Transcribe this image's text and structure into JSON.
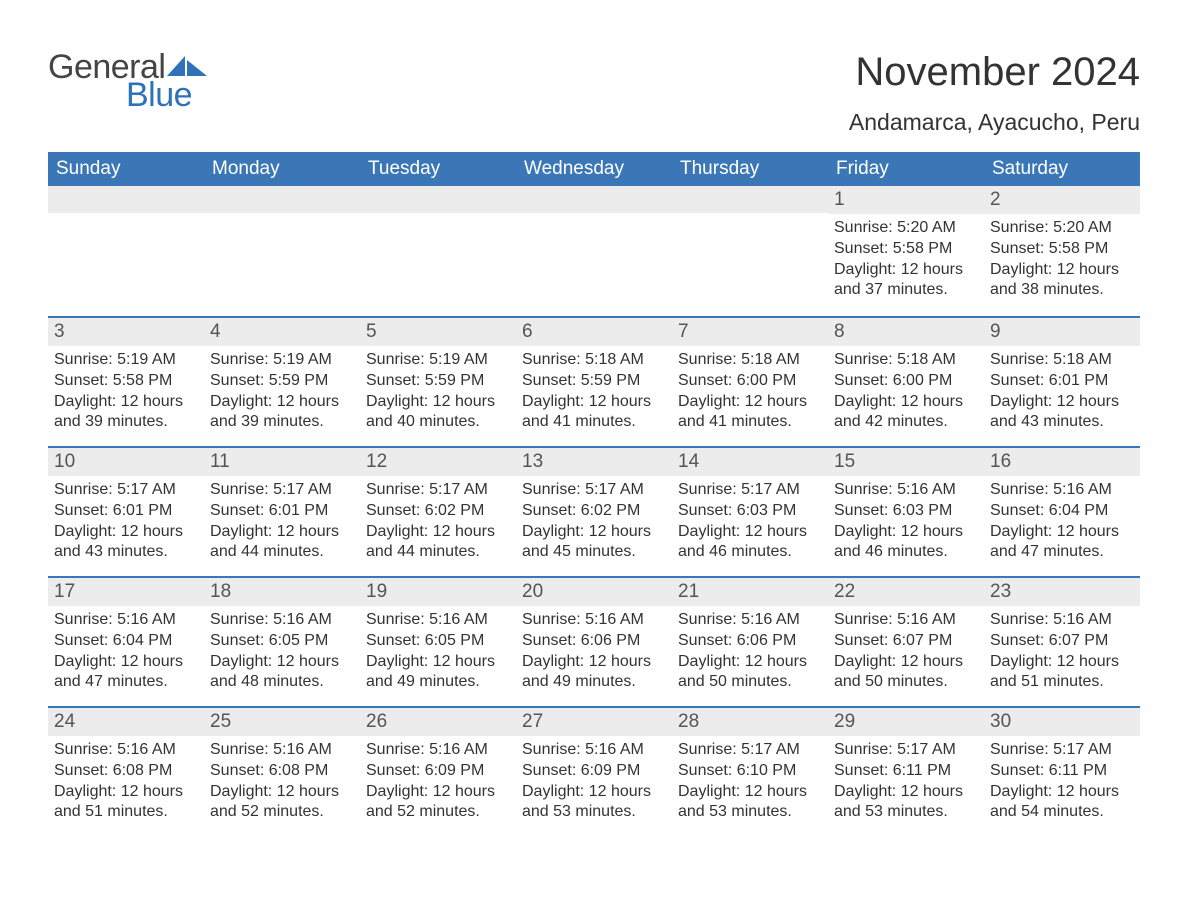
{
  "logo": {
    "text1": "General",
    "text2": "Blue",
    "icon_color": "#2f72b9"
  },
  "title": "November 2024",
  "location": "Andamarca, Ayacucho, Peru",
  "colors": {
    "header_bg": "#3b77b7",
    "header_text": "#ffffff",
    "date_bar_bg": "#ececec",
    "border": "#3b77b7",
    "body_text": "#333333"
  },
  "day_headers": [
    "Sunday",
    "Monday",
    "Tuesday",
    "Wednesday",
    "Thursday",
    "Friday",
    "Saturday"
  ],
  "weeks": [
    [
      {
        "date": "",
        "sunrise": "",
        "sunset": "",
        "daylight": ""
      },
      {
        "date": "",
        "sunrise": "",
        "sunset": "",
        "daylight": ""
      },
      {
        "date": "",
        "sunrise": "",
        "sunset": "",
        "daylight": ""
      },
      {
        "date": "",
        "sunrise": "",
        "sunset": "",
        "daylight": ""
      },
      {
        "date": "",
        "sunrise": "",
        "sunset": "",
        "daylight": ""
      },
      {
        "date": "1",
        "sunrise": "Sunrise: 5:20 AM",
        "sunset": "Sunset: 5:58 PM",
        "daylight": "Daylight: 12 hours and 37 minutes."
      },
      {
        "date": "2",
        "sunrise": "Sunrise: 5:20 AM",
        "sunset": "Sunset: 5:58 PM",
        "daylight": "Daylight: 12 hours and 38 minutes."
      }
    ],
    [
      {
        "date": "3",
        "sunrise": "Sunrise: 5:19 AM",
        "sunset": "Sunset: 5:58 PM",
        "daylight": "Daylight: 12 hours and 39 minutes."
      },
      {
        "date": "4",
        "sunrise": "Sunrise: 5:19 AM",
        "sunset": "Sunset: 5:59 PM",
        "daylight": "Daylight: 12 hours and 39 minutes."
      },
      {
        "date": "5",
        "sunrise": "Sunrise: 5:19 AM",
        "sunset": "Sunset: 5:59 PM",
        "daylight": "Daylight: 12 hours and 40 minutes."
      },
      {
        "date": "6",
        "sunrise": "Sunrise: 5:18 AM",
        "sunset": "Sunset: 5:59 PM",
        "daylight": "Daylight: 12 hours and 41 minutes."
      },
      {
        "date": "7",
        "sunrise": "Sunrise: 5:18 AM",
        "sunset": "Sunset: 6:00 PM",
        "daylight": "Daylight: 12 hours and 41 minutes."
      },
      {
        "date": "8",
        "sunrise": "Sunrise: 5:18 AM",
        "sunset": "Sunset: 6:00 PM",
        "daylight": "Daylight: 12 hours and 42 minutes."
      },
      {
        "date": "9",
        "sunrise": "Sunrise: 5:18 AM",
        "sunset": "Sunset: 6:01 PM",
        "daylight": "Daylight: 12 hours and 43 minutes."
      }
    ],
    [
      {
        "date": "10",
        "sunrise": "Sunrise: 5:17 AM",
        "sunset": "Sunset: 6:01 PM",
        "daylight": "Daylight: 12 hours and 43 minutes."
      },
      {
        "date": "11",
        "sunrise": "Sunrise: 5:17 AM",
        "sunset": "Sunset: 6:01 PM",
        "daylight": "Daylight: 12 hours and 44 minutes."
      },
      {
        "date": "12",
        "sunrise": "Sunrise: 5:17 AM",
        "sunset": "Sunset: 6:02 PM",
        "daylight": "Daylight: 12 hours and 44 minutes."
      },
      {
        "date": "13",
        "sunrise": "Sunrise: 5:17 AM",
        "sunset": "Sunset: 6:02 PM",
        "daylight": "Daylight: 12 hours and 45 minutes."
      },
      {
        "date": "14",
        "sunrise": "Sunrise: 5:17 AM",
        "sunset": "Sunset: 6:03 PM",
        "daylight": "Daylight: 12 hours and 46 minutes."
      },
      {
        "date": "15",
        "sunrise": "Sunrise: 5:16 AM",
        "sunset": "Sunset: 6:03 PM",
        "daylight": "Daylight: 12 hours and 46 minutes."
      },
      {
        "date": "16",
        "sunrise": "Sunrise: 5:16 AM",
        "sunset": "Sunset: 6:04 PM",
        "daylight": "Daylight: 12 hours and 47 minutes."
      }
    ],
    [
      {
        "date": "17",
        "sunrise": "Sunrise: 5:16 AM",
        "sunset": "Sunset: 6:04 PM",
        "daylight": "Daylight: 12 hours and 47 minutes."
      },
      {
        "date": "18",
        "sunrise": "Sunrise: 5:16 AM",
        "sunset": "Sunset: 6:05 PM",
        "daylight": "Daylight: 12 hours and 48 minutes."
      },
      {
        "date": "19",
        "sunrise": "Sunrise: 5:16 AM",
        "sunset": "Sunset: 6:05 PM",
        "daylight": "Daylight: 12 hours and 49 minutes."
      },
      {
        "date": "20",
        "sunrise": "Sunrise: 5:16 AM",
        "sunset": "Sunset: 6:06 PM",
        "daylight": "Daylight: 12 hours and 49 minutes."
      },
      {
        "date": "21",
        "sunrise": "Sunrise: 5:16 AM",
        "sunset": "Sunset: 6:06 PM",
        "daylight": "Daylight: 12 hours and 50 minutes."
      },
      {
        "date": "22",
        "sunrise": "Sunrise: 5:16 AM",
        "sunset": "Sunset: 6:07 PM",
        "daylight": "Daylight: 12 hours and 50 minutes."
      },
      {
        "date": "23",
        "sunrise": "Sunrise: 5:16 AM",
        "sunset": "Sunset: 6:07 PM",
        "daylight": "Daylight: 12 hours and 51 minutes."
      }
    ],
    [
      {
        "date": "24",
        "sunrise": "Sunrise: 5:16 AM",
        "sunset": "Sunset: 6:08 PM",
        "daylight": "Daylight: 12 hours and 51 minutes."
      },
      {
        "date": "25",
        "sunrise": "Sunrise: 5:16 AM",
        "sunset": "Sunset: 6:08 PM",
        "daylight": "Daylight: 12 hours and 52 minutes."
      },
      {
        "date": "26",
        "sunrise": "Sunrise: 5:16 AM",
        "sunset": "Sunset: 6:09 PM",
        "daylight": "Daylight: 12 hours and 52 minutes."
      },
      {
        "date": "27",
        "sunrise": "Sunrise: 5:16 AM",
        "sunset": "Sunset: 6:09 PM",
        "daylight": "Daylight: 12 hours and 53 minutes."
      },
      {
        "date": "28",
        "sunrise": "Sunrise: 5:17 AM",
        "sunset": "Sunset: 6:10 PM",
        "daylight": "Daylight: 12 hours and 53 minutes."
      },
      {
        "date": "29",
        "sunrise": "Sunrise: 5:17 AM",
        "sunset": "Sunset: 6:11 PM",
        "daylight": "Daylight: 12 hours and 53 minutes."
      },
      {
        "date": "30",
        "sunrise": "Sunrise: 5:17 AM",
        "sunset": "Sunset: 6:11 PM",
        "daylight": "Daylight: 12 hours and 54 minutes."
      }
    ]
  ]
}
